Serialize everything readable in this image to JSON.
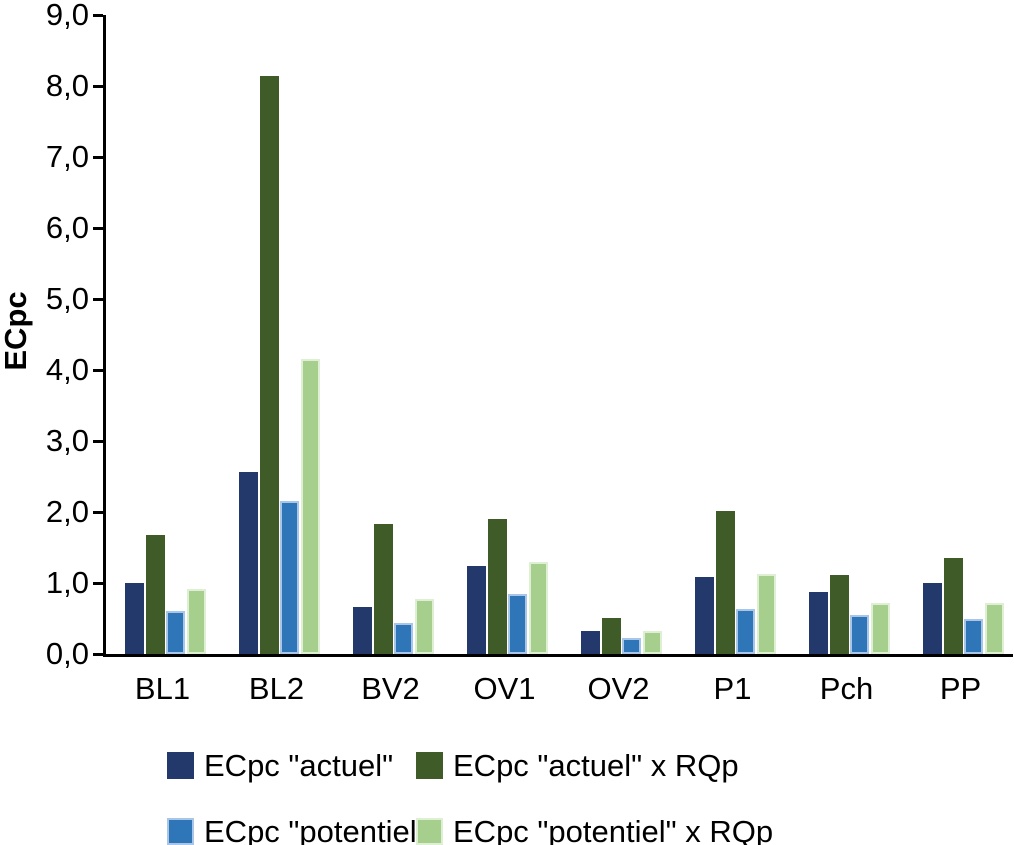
{
  "chart_data": {
    "type": "bar",
    "title": "",
    "ylabel": "ECpc",
    "xlabel": "",
    "ylim": [
      0,
      9
    ],
    "ytick_step": 1.0,
    "ytick_labels": [
      "0,0",
      "1,0",
      "2,0",
      "3,0",
      "4,0",
      "5,0",
      "6,0",
      "7,0",
      "8,0",
      "9,0"
    ],
    "decimal_separator": ",",
    "grid": false,
    "legend_position": "bottom",
    "legend_columns": 2,
    "categories": [
      "BL1",
      "BL2",
      "BV2",
      "OV1",
      "OV2",
      "P1",
      "Pch",
      "PP"
    ],
    "series": [
      {
        "name": "ECpc \"actuel\"",
        "color": "#24396B",
        "values": [
          1.0,
          2.56,
          0.66,
          1.24,
          0.32,
          1.09,
          0.87,
          1.0
        ]
      },
      {
        "name": "ECpc \"actuel\" x RQp",
        "color": "#3F5C28",
        "values": [
          1.68,
          8.14,
          1.83,
          1.9,
          0.51,
          2.01,
          1.11,
          1.35
        ]
      },
      {
        "name": "ECpc \"potentiel\"",
        "color": "#2E76B8",
        "border_color": "#A9C6E8",
        "values": [
          0.61,
          2.15,
          0.44,
          0.84,
          0.22,
          0.64,
          0.55,
          0.49
        ]
      },
      {
        "name": "ECpc \"potentiel\" x RQp",
        "color": "#A6CF8D",
        "border_color": "#DEEFD4",
        "values": [
          0.92,
          4.15,
          0.77,
          1.29,
          0.33,
          1.12,
          0.72,
          0.72
        ]
      }
    ]
  }
}
